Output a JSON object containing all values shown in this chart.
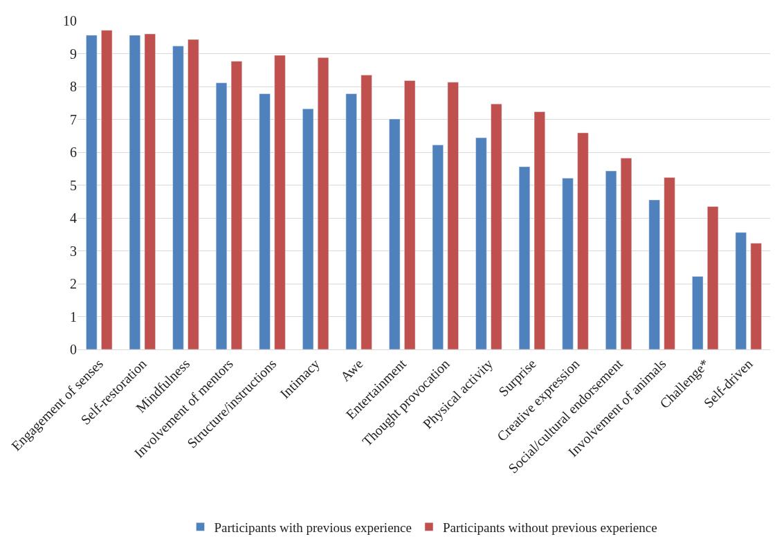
{
  "chart_data": {
    "type": "bar",
    "categories": [
      "Engagement of senses",
      "Self-restoration",
      "Mindfulness",
      "Involvement of mentors",
      "Structure/instructions",
      "Intimacy",
      "Awe",
      "Entertainment",
      "Thought provocation",
      "Physical activity",
      "Surprise",
      "Creative expression",
      "Social/cultural endorsement",
      "Involvement of animals",
      "Challenge*",
      "Self-driven"
    ],
    "series": [
      {
        "name": "Participants with previous experience",
        "color": "#4f81bd",
        "values": [
          9.56,
          9.56,
          9.23,
          8.11,
          7.78,
          7.32,
          7.78,
          7.01,
          6.22,
          6.44,
          5.56,
          5.21,
          5.43,
          4.55,
          2.22,
          3.56
        ]
      },
      {
        "name": "Participants without previous experience",
        "color": "#c0504d",
        "values": [
          9.71,
          9.6,
          9.43,
          8.77,
          8.95,
          8.88,
          8.35,
          8.18,
          8.13,
          7.47,
          7.23,
          6.59,
          5.82,
          5.23,
          4.35,
          3.23
        ]
      }
    ],
    "ylim": [
      0,
      10
    ],
    "yticks": [
      0,
      1,
      2,
      3,
      4,
      5,
      6,
      7,
      8,
      9,
      10
    ],
    "grid": "y",
    "legend": "bottom"
  }
}
